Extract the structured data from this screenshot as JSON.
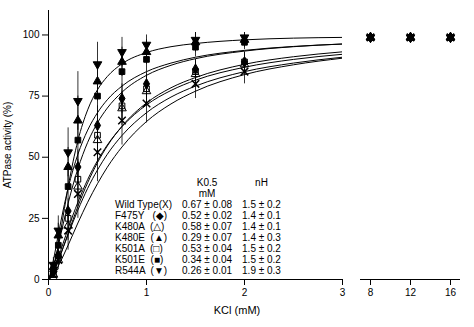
{
  "chart_data": {
    "type": "scatter",
    "xlabel": "KCl (mM)",
    "ylabel": "ATPase activity (%)",
    "ylim": [
      0,
      110
    ],
    "yticks": [
      0,
      25,
      50,
      75,
      100
    ],
    "panels": [
      {
        "xlim": [
          0,
          3
        ],
        "xticks": [
          0,
          1,
          2,
          3
        ]
      },
      {
        "xlim": [
          7,
          17
        ],
        "xticks": [
          8,
          12,
          16
        ]
      }
    ],
    "grid": false,
    "table_header": [
      [
        "K0.5",
        "mM"
      ],
      [
        "nH"
      ]
    ],
    "fit_x": [
      0.005,
      0.05,
      0.1,
      0.15,
      0.2,
      0.3,
      0.4,
      0.5,
      0.6,
      0.75,
      1.0,
      1.25,
      1.5,
      2.0,
      2.5,
      3.0
    ],
    "series": [
      {
        "name": "Wild Type(X)",
        "color": "black",
        "marker": "x",
        "x": [
          0.05,
          0.1,
          0.2,
          0.3,
          0.5,
          0.75,
          1.0,
          1.5,
          2.0,
          8,
          12,
          16
        ],
        "values": [
          2,
          8,
          20,
          35,
          52,
          65,
          72,
          80,
          85,
          99,
          99,
          99
        ],
        "errors": [
          1,
          4,
          8,
          10,
          12,
          10,
          8,
          6,
          5,
          2,
          2,
          2
        ],
        "table_values": [
          "0.67 ± 0.08",
          "1.5 ± 0.2"
        ],
        "fit_values": [
          0.1,
          2.0,
          5.5,
          9.6,
          14.0,
          23.1,
          31.6,
          39.2,
          45.9,
          54.2,
          64.6,
          71.8,
          77.0,
          83.8,
          87.8,
          90.5
        ]
      },
      {
        "name": "F475Y   (◆)",
        "color": "black",
        "marker": "filled-diamond",
        "x": [
          0.05,
          0.1,
          0.2,
          0.3,
          0.5,
          0.75,
          1.0,
          1.5,
          2.0,
          8,
          12,
          16
        ],
        "values": [
          3,
          10,
          28,
          46,
          63,
          74,
          80,
          86,
          89,
          99,
          99,
          99
        ],
        "errors": [
          1,
          3,
          5,
          7,
          8,
          6,
          5,
          4,
          4,
          2,
          2,
          2
        ],
        "table_values": [
          "0.52 ± 0.02",
          "1.4 ± 0.1"
        ],
        "fit_values": [
          0.1,
          3.6,
          9.0,
          14.9,
          20.8,
          31.6,
          40.9,
          48.6,
          55.0,
          62.5,
          71.4,
          77.3,
          81.5,
          86.8,
          90.0,
          92.1
        ]
      },
      {
        "name": "K480A  (△)",
        "color": "black",
        "marker": "open-triangle",
        "x": [
          0.05,
          0.1,
          0.2,
          0.3,
          0.5,
          0.75,
          1.0,
          1.5,
          2.0,
          8,
          12,
          16
        ],
        "values": [
          2,
          8,
          22,
          38,
          57,
          70,
          77,
          84,
          88,
          99,
          99,
          99
        ],
        "errors": [
          1,
          3,
          6,
          8,
          9,
          7,
          6,
          5,
          4,
          2,
          2,
          2
        ],
        "table_values": [
          "0.58 ± 0.07",
          "1.4 ± 0.1"
        ],
        "fit_values": [
          0.1,
          3.1,
          7.9,
          13.1,
          18.4,
          28.4,
          37.3,
          44.8,
          51.2,
          58.9,
          68.2,
          74.6,
          79.1,
          85.0,
          88.5,
          90.9
        ]
      },
      {
        "name": "K480E  (▲)",
        "color": "black",
        "marker": "filled-triangle",
        "x": [
          0.05,
          0.1,
          0.2,
          0.3,
          0.5,
          0.75,
          1.0,
          1.5,
          2.0,
          8,
          12,
          16
        ],
        "values": [
          5,
          18,
          46,
          65,
          81,
          89,
          93,
          97,
          98,
          99,
          99,
          99
        ],
        "errors": [
          2,
          5,
          8,
          10,
          8,
          6,
          5,
          4,
          3,
          2,
          2,
          2
        ],
        "table_values": [
          "0.29 ± 0.07",
          "1.4 ± 0.3"
        ],
        "fit_values": [
          0.3,
          7.9,
          18.4,
          28.4,
          37.3,
          51.2,
          61.1,
          68.2,
          73.5,
          79.1,
          85.0,
          88.5,
          90.9,
          93.7,
          95.3,
          96.3
        ]
      },
      {
        "name": "K501A  (□)",
        "color": "black",
        "marker": "open-square",
        "x": [
          0.05,
          0.1,
          0.2,
          0.3,
          0.5,
          0.75,
          1.0,
          1.5,
          2.0,
          8,
          12,
          16
        ],
        "values": [
          2,
          9,
          25,
          41,
          59,
          71,
          78,
          85,
          89,
          99,
          99,
          99
        ],
        "errors": [
          1,
          3,
          6,
          8,
          9,
          7,
          6,
          5,
          4,
          2,
          2,
          2
        ],
        "table_values": [
          "0.53 ± 0.04",
          "1.5 ± 0.2"
        ],
        "fit_values": [
          0.1,
          2.8,
          7.6,
          13.1,
          18.8,
          29.9,
          39.6,
          47.8,
          54.6,
          62.7,
          72.2,
          78.4,
          82.6,
          88.0,
          91.1,
          93.1
        ]
      },
      {
        "name": "K501E  (■)",
        "color": "black",
        "marker": "filled-square",
        "x": [
          0.05,
          0.1,
          0.2,
          0.3,
          0.5,
          0.75,
          1.0,
          1.5,
          2.0,
          8,
          12,
          16
        ],
        "values": [
          4,
          14,
          38,
          57,
          75,
          85,
          90,
          95,
          97,
          99,
          99,
          99
        ],
        "errors": [
          2,
          4,
          7,
          10,
          8,
          7,
          5,
          4,
          3,
          2,
          2,
          2
        ],
        "table_values": [
          "0.34 ± 0.04",
          "1.5 ± 0.2"
        ],
        "fit_values": [
          0.2,
          5.3,
          13.8,
          22.7,
          31.1,
          45.3,
          56.1,
          64.1,
          70.1,
          76.6,
          83.5,
          87.6,
          90.3,
          93.4,
          95.2,
          96.3
        ]
      },
      {
        "name": "R544A  (▼)",
        "color": "black",
        "marker": "filled-triangle-down",
        "x": [
          0.05,
          0.1,
          0.2,
          0.3,
          0.5,
          0.75,
          1.0,
          1.5,
          2.0,
          8,
          12,
          16
        ],
        "values": [
          6,
          20,
          52,
          73,
          88,
          93,
          96,
          98,
          99,
          99,
          99,
          99
        ],
        "errors": [
          3,
          6,
          10,
          12,
          9,
          6,
          4,
          3,
          2,
          2,
          2,
          2
        ],
        "table_values": [
          "0.26 ± 0.01",
          "1.9 ± 0.3"
        ],
        "fit_values": [
          0.1,
          4.2,
          14.0,
          26.0,
          37.8,
          56.8,
          69.4,
          77.6,
          83.0,
          88.2,
          92.8,
          95.2,
          96.5,
          98.0,
          98.7,
          99.0
        ]
      }
    ]
  }
}
